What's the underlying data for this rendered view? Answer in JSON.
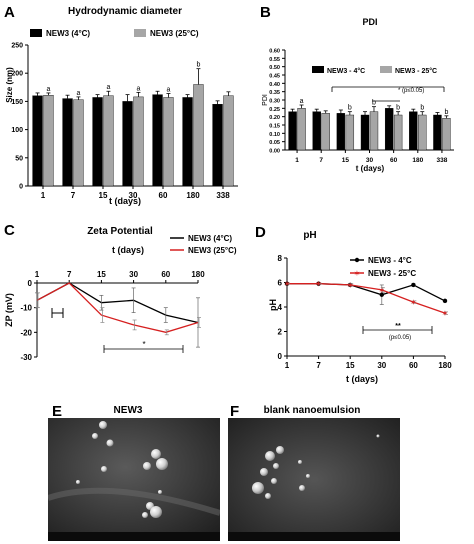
{
  "panels": [
    {
      "letter": "A",
      "title": "Hydrodynamic diameter"
    },
    {
      "letter": "B",
      "title": "PDI"
    },
    {
      "letter": "C",
      "title": "Zeta Potential"
    },
    {
      "letter": "D",
      "title": "pH"
    },
    {
      "letter": "E",
      "title": "NEW3"
    },
    {
      "letter": "F",
      "title": "blank nanoemulsion"
    }
  ],
  "chart_data": [
    {
      "type": "bar",
      "title": "Hydrodynamic diameter",
      "xlabel": "t (days)",
      "ylabel": "Size (nm)",
      "ylim": [
        0,
        250
      ],
      "yticks": [
        0,
        50,
        100,
        150,
        200,
        250
      ],
      "categories": [
        "1",
        "7",
        "15",
        "30",
        "60",
        "180",
        "338"
      ],
      "series": [
        {
          "name": "NEW3 (4°C)",
          "color": "#000000",
          "values": [
            160,
            155,
            157,
            150,
            162,
            157,
            145
          ],
          "errors": [
            5,
            6,
            5,
            12,
            6,
            5,
            6
          ]
        },
        {
          "name": "NEW3 (25°C)",
          "color": "#a6a6a6",
          "values": [
            161,
            153,
            160,
            158,
            157,
            180,
            160
          ],
          "errors": [
            4,
            5,
            8,
            8,
            7,
            28,
            7
          ]
        }
      ],
      "letters": [
        {
          "index": 0,
          "series": 1,
          "text": "a"
        },
        {
          "index": 1,
          "series": 1,
          "text": "a"
        },
        {
          "index": 2,
          "series": 1,
          "text": "a"
        },
        {
          "index": 3,
          "series": 1,
          "text": "a"
        },
        {
          "index": 4,
          "series": 1,
          "text": "a"
        },
        {
          "index": 5,
          "series": 1,
          "text": "b"
        }
      ],
      "legend": "top"
    },
    {
      "type": "bar",
      "title": "PDI",
      "xlabel": "t (days)",
      "ylabel": "PDI",
      "ylim": [
        0,
        0.6
      ],
      "yticks": [
        "0.00",
        "0.05",
        "0.10",
        "0.15",
        "0.20",
        "0.25",
        "0.30",
        "0.35",
        "0.40",
        "0.45",
        "0.50",
        "0.55",
        "0.60"
      ],
      "categories": [
        "1",
        "7",
        "15",
        "30",
        "60",
        "180",
        "338"
      ],
      "series": [
        {
          "name": "NEW3 - 4°C",
          "color": "#000000",
          "values": [
            0.23,
            0.23,
            0.22,
            0.21,
            0.25,
            0.23,
            0.21
          ],
          "errors": [
            0.015,
            0.015,
            0.02,
            0.02,
            0.015,
            0.015,
            0.015
          ]
        },
        {
          "name": "NEW3 - 25°C",
          "color": "#a6a6a6",
          "values": [
            0.25,
            0.22,
            0.21,
            0.23,
            0.21,
            0.21,
            0.19
          ],
          "errors": [
            0.02,
            0.015,
            0.02,
            0.03,
            0.02,
            0.02,
            0.015
          ]
        }
      ],
      "letters": [
        {
          "index": 0,
          "series": 1,
          "text": "a"
        },
        {
          "index": 2,
          "series": 1,
          "text": "b"
        },
        {
          "index": 3,
          "series": 1,
          "text": "b"
        },
        {
          "index": 4,
          "series": 1,
          "text": "b"
        },
        {
          "index": 5,
          "series": 1,
          "text": "b"
        },
        {
          "index": 6,
          "series": 1,
          "text": "b"
        }
      ],
      "annotation": "* (p≤0.05)",
      "legend": "top"
    },
    {
      "type": "line",
      "title": "Zeta Potential",
      "xlabel": "t (days)",
      "ylabel": "ZP (mV)",
      "ylim": [
        -30,
        0
      ],
      "yticks": [
        0,
        -10,
        -20,
        -30
      ],
      "x": [
        "1",
        "7",
        "15",
        "30",
        "60",
        "180"
      ],
      "series": [
        {
          "name": "NEW3 (4°C)",
          "color": "#000000",
          "values": [
            -7,
            0,
            -8,
            -7,
            -13,
            -16
          ],
          "errors": [
            3,
            0,
            3,
            5,
            3,
            10
          ]
        },
        {
          "name": "NEW3 (25°C)",
          "color": "#d62020",
          "values": [
            -7,
            0,
            -13,
            -17,
            -20,
            -16
          ],
          "errors": [
            3,
            0,
            3,
            2,
            1,
            2
          ]
        }
      ],
      "annotation": "*",
      "legend": "top-right"
    },
    {
      "type": "line",
      "title": "pH",
      "xlabel": "t (days)",
      "ylabel": "pH",
      "ylim": [
        0,
        8
      ],
      "yticks": [
        0,
        2,
        4,
        6,
        8
      ],
      "x": [
        "1",
        "7",
        "15",
        "30",
        "60",
        "180"
      ],
      "series": [
        {
          "name": "NEW3 - 4°C",
          "color": "#000000",
          "values": [
            5.9,
            5.9,
            5.8,
            5.0,
            5.8,
            4.5
          ],
          "errors": [
            0.05,
            0.05,
            0.1,
            0.8,
            0.1,
            0.1
          ]
        },
        {
          "name": "NEW3 - 25°C",
          "color": "#d62020",
          "values": [
            5.9,
            5.9,
            5.8,
            5.4,
            4.4,
            3.5
          ],
          "errors": [
            0.05,
            0.05,
            0.1,
            0.2,
            0.1,
            0.1
          ]
        }
      ],
      "annotation": "**",
      "annotation2": "(p≤0.05)",
      "legend": "top-right"
    }
  ]
}
